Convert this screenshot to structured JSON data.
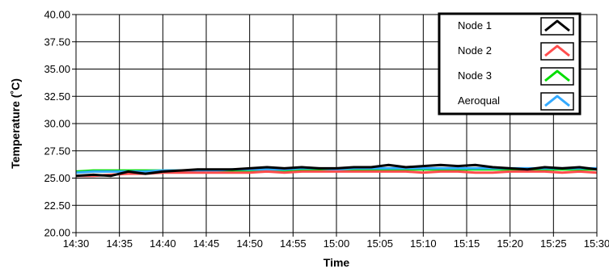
{
  "chart_data": {
    "type": "line",
    "title": "",
    "xlabel": "Time",
    "ylabel": "Temperature (˚C)",
    "ylim": [
      20.0,
      40.0
    ],
    "yticks": [
      "20.00",
      "22.50",
      "25.00",
      "27.50",
      "30.00",
      "32.50",
      "35.00",
      "37.50",
      "40.00"
    ],
    "xticks": [
      "14:30",
      "14:35",
      "14:40",
      "14:45",
      "14:50",
      "14:55",
      "15:00",
      "15:05",
      "15:10",
      "15:15",
      "15:20",
      "15:25",
      "15:30"
    ],
    "grid": true,
    "legend_position": "top-right",
    "x": [
      "14:30",
      "14:32",
      "14:34",
      "14:36",
      "14:38",
      "14:40",
      "14:42",
      "14:44",
      "14:46",
      "14:48",
      "14:50",
      "14:52",
      "14:54",
      "14:56",
      "14:58",
      "15:00",
      "15:02",
      "15:04",
      "15:06",
      "15:08",
      "15:10",
      "15:12",
      "15:14",
      "15:16",
      "15:18",
      "15:20",
      "15:22",
      "15:24",
      "15:26",
      "15:28",
      "15:30"
    ],
    "series": [
      {
        "name": "Node 1",
        "color": "#000000",
        "values": [
          25.2,
          25.3,
          25.2,
          25.6,
          25.4,
          25.6,
          25.7,
          25.8,
          25.8,
          25.8,
          25.9,
          26.0,
          25.9,
          26.0,
          25.9,
          25.9,
          26.0,
          26.0,
          26.2,
          26.0,
          26.1,
          26.2,
          26.1,
          26.2,
          26.0,
          25.9,
          25.8,
          26.0,
          25.9,
          26.0,
          25.8
        ]
      },
      {
        "name": "Node 2",
        "color": "#ff4d4d",
        "values": [
          25.2,
          25.2,
          25.3,
          25.4,
          25.4,
          25.5,
          25.5,
          25.5,
          25.5,
          25.5,
          25.5,
          25.6,
          25.5,
          25.6,
          25.6,
          25.6,
          25.6,
          25.6,
          25.6,
          25.6,
          25.5,
          25.6,
          25.6,
          25.5,
          25.5,
          25.6,
          25.6,
          25.6,
          25.5,
          25.6,
          25.5
        ]
      },
      {
        "name": "Node 3",
        "color": "#00dd00",
        "values": [
          25.6,
          25.7,
          25.7,
          25.7,
          25.7,
          25.7,
          25.7,
          25.7,
          25.7,
          25.7,
          25.7,
          25.7,
          25.7,
          25.8,
          25.8,
          25.7,
          25.8,
          25.8,
          25.8,
          25.8,
          25.8,
          25.8,
          25.8,
          25.8,
          25.8,
          25.8,
          25.8,
          25.8,
          25.8,
          25.8,
          25.8
        ]
      },
      {
        "name": "Aeroqual",
        "color": "#33aaff",
        "values": [
          25.5,
          25.6,
          25.6,
          25.6,
          25.6,
          25.7,
          25.7,
          25.7,
          25.7,
          25.8,
          25.8,
          25.8,
          25.8,
          25.9,
          25.9,
          25.8,
          25.9,
          25.9,
          25.9,
          25.9,
          25.9,
          25.9,
          25.9,
          25.9,
          25.9,
          25.9,
          25.9,
          25.9,
          25.9,
          25.9,
          25.9
        ]
      }
    ]
  }
}
